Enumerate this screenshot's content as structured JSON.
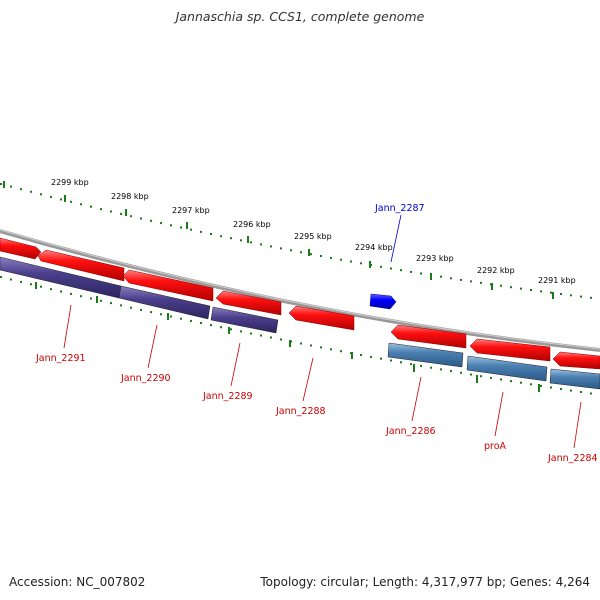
{
  "title": "Jannaschia sp. CCS1, complete genome",
  "accession_text": "Accession: NC_007802",
  "topology_text": "Topology: circular; Length: 4,317,977 bp; Genes: 4,264",
  "colors": {
    "forward_gene": "#ff0000",
    "reverse_gene_cds_purple": "#4b3f8c",
    "cds_blue": "#4a7fb0",
    "highlight_gene": "#0000ff",
    "tick": "#1a7a1a",
    "backbone": "#888888",
    "label_red": "#cc0000",
    "label_blue": "#0000cc"
  },
  "kbp_labels": [
    "2299 kbp",
    "2298 kbp",
    "2297 kbp",
    "2296 kbp",
    "2295 kbp",
    "2294 kbp",
    "2293 kbp",
    "2292 kbp",
    "2291 kbp"
  ],
  "gene_labels": [
    {
      "text": "Jann_2291",
      "color": "red"
    },
    {
      "text": "Jann_2290",
      "color": "red"
    },
    {
      "text": "Jann_2289",
      "color": "red"
    },
    {
      "text": "Jann_2288",
      "color": "red"
    },
    {
      "text": "Jann_2287",
      "color": "blue"
    },
    {
      "text": "Jann_2286",
      "color": "red"
    },
    {
      "text": "proA",
      "color": "red"
    },
    {
      "text": "Jann_2284",
      "color": "red"
    }
  ]
}
